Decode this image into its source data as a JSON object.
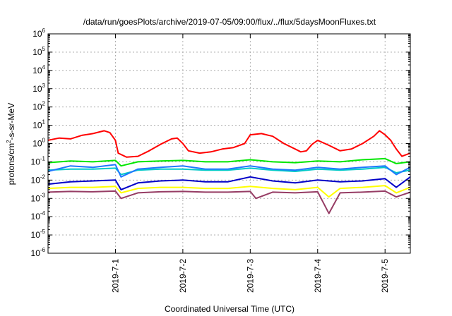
{
  "chart_data": {
    "type": "line",
    "title": "/data/run/goesPlots/archive/2019-07-05/09:00/flux/../flux/5daysMoonFluxes.txt",
    "xlabel": "Coordinated Universal Time (UTC)",
    "ylabel": {
      "prefix": "protons/cm",
      "superscript": "2",
      "suffix": "-s-sr-MeV"
    },
    "yscale": "log",
    "ylim": [
      1e-06,
      1000000.0
    ],
    "y_ticks": [
      {
        "value": 1e-06,
        "base": "10",
        "exp": "-6"
      },
      {
        "value": 1e-05,
        "base": "10",
        "exp": "-5"
      },
      {
        "value": 0.0001,
        "base": "10",
        "exp": "-4"
      },
      {
        "value": 0.001,
        "base": "10",
        "exp": "-3"
      },
      {
        "value": 0.01,
        "base": "10",
        "exp": "-2"
      },
      {
        "value": 0.1,
        "base": "10",
        "exp": "-1"
      },
      {
        "value": 1,
        "base": "10",
        "exp": "0"
      },
      {
        "value": 10,
        "base": "10",
        "exp": "1"
      },
      {
        "value": 100,
        "base": "10",
        "exp": "2"
      },
      {
        "value": 1000,
        "base": "10",
        "exp": "3"
      },
      {
        "value": 10000,
        "base": "10",
        "exp": "4"
      },
      {
        "value": 100000,
        "base": "10",
        "exp": "5"
      },
      {
        "value": 1000000,
        "base": "10",
        "exp": "6"
      }
    ],
    "xlim": [
      "2019-06-30T00:00",
      "2019-07-05T09:00"
    ],
    "x_ticks": [
      {
        "value": "2019-07-01T00:00",
        "label": "2019-7-1"
      },
      {
        "value": "2019-07-02T00:00",
        "label": "2019-7-2"
      },
      {
        "value": "2019-07-03T00:00",
        "label": "2019-7-3"
      },
      {
        "value": "2019-07-04T00:00",
        "label": "2019-7-4"
      },
      {
        "value": "2019-07-05T00:00",
        "label": "2019-7-5"
      }
    ],
    "grid": true,
    "legend": "none",
    "series": [
      {
        "color": "#ff0000",
        "points": [
          [
            "2019-06-30T00:00",
            1.5
          ],
          [
            "2019-06-30T04:00",
            2.0
          ],
          [
            "2019-06-30T08:00",
            1.8
          ],
          [
            "2019-06-30T12:00",
            2.8
          ],
          [
            "2019-06-30T16:00",
            3.5
          ],
          [
            "2019-06-30T20:00",
            5.0
          ],
          [
            "2019-06-30T22:00",
            4.0
          ],
          [
            "2019-07-01T00:00",
            1.5
          ],
          [
            "2019-07-01T01:00",
            0.3
          ],
          [
            "2019-07-01T04:00",
            0.18
          ],
          [
            "2019-07-01T08:00",
            0.2
          ],
          [
            "2019-07-01T12:00",
            0.4
          ],
          [
            "2019-07-01T16:00",
            0.9
          ],
          [
            "2019-07-01T20:00",
            1.8
          ],
          [
            "2019-07-01T22:00",
            2.0
          ],
          [
            "2019-07-02T00:00",
            1.0
          ],
          [
            "2019-07-02T02:00",
            0.4
          ],
          [
            "2019-07-02T06:00",
            0.3
          ],
          [
            "2019-07-02T10:00",
            0.35
          ],
          [
            "2019-07-02T14:00",
            0.5
          ],
          [
            "2019-07-02T18:00",
            0.6
          ],
          [
            "2019-07-02T22:00",
            1.0
          ],
          [
            "2019-07-03T00:00",
            3.0
          ],
          [
            "2019-07-03T04:00",
            3.5
          ],
          [
            "2019-07-03T08:00",
            2.5
          ],
          [
            "2019-07-03T12:00",
            1.0
          ],
          [
            "2019-07-03T16:00",
            0.5
          ],
          [
            "2019-07-03T18:00",
            0.35
          ],
          [
            "2019-07-03T20:00",
            0.4
          ],
          [
            "2019-07-03T22:00",
            0.9
          ],
          [
            "2019-07-04T00:00",
            1.5
          ],
          [
            "2019-07-04T04:00",
            0.8
          ],
          [
            "2019-07-04T08:00",
            0.4
          ],
          [
            "2019-07-04T12:00",
            0.5
          ],
          [
            "2019-07-04T16:00",
            1.0
          ],
          [
            "2019-07-04T20:00",
            2.5
          ],
          [
            "2019-07-04T22:00",
            5.0
          ],
          [
            "2019-07-05T00:00",
            3.0
          ],
          [
            "2019-07-05T02:00",
            1.5
          ],
          [
            "2019-07-05T04:00",
            0.5
          ],
          [
            "2019-07-05T06:00",
            0.2
          ],
          [
            "2019-07-05T09:00",
            0.3
          ]
        ]
      },
      {
        "color": "#00e600",
        "points": [
          [
            "2019-06-30T00:00",
            0.09
          ],
          [
            "2019-06-30T08:00",
            0.11
          ],
          [
            "2019-06-30T16:00",
            0.1
          ],
          [
            "2019-07-01T00:00",
            0.12
          ],
          [
            "2019-07-01T02:00",
            0.06
          ],
          [
            "2019-07-01T08:00",
            0.1
          ],
          [
            "2019-07-01T16:00",
            0.11
          ],
          [
            "2019-07-02T00:00",
            0.12
          ],
          [
            "2019-07-02T08:00",
            0.1
          ],
          [
            "2019-07-02T16:00",
            0.1
          ],
          [
            "2019-07-03T00:00",
            0.13
          ],
          [
            "2019-07-03T08:00",
            0.1
          ],
          [
            "2019-07-03T16:00",
            0.09
          ],
          [
            "2019-07-04T00:00",
            0.11
          ],
          [
            "2019-07-04T08:00",
            0.1
          ],
          [
            "2019-07-04T16:00",
            0.13
          ],
          [
            "2019-07-05T00:00",
            0.15
          ],
          [
            "2019-07-05T04:00",
            0.08
          ],
          [
            "2019-07-05T09:00",
            0.1
          ]
        ]
      },
      {
        "color": "#00c8c8",
        "points": [
          [
            "2019-06-30T00:00",
            0.035
          ],
          [
            "2019-06-30T08:00",
            0.04
          ],
          [
            "2019-06-30T16:00",
            0.04
          ],
          [
            "2019-07-01T00:00",
            0.045
          ],
          [
            "2019-07-01T02:00",
            0.02
          ],
          [
            "2019-07-01T08:00",
            0.035
          ],
          [
            "2019-07-01T16:00",
            0.04
          ],
          [
            "2019-07-02T00:00",
            0.04
          ],
          [
            "2019-07-02T08:00",
            0.035
          ],
          [
            "2019-07-02T16:00",
            0.035
          ],
          [
            "2019-07-03T00:00",
            0.045
          ],
          [
            "2019-07-03T08:00",
            0.035
          ],
          [
            "2019-07-03T16:00",
            0.03
          ],
          [
            "2019-07-04T00:00",
            0.04
          ],
          [
            "2019-07-04T08:00",
            0.035
          ],
          [
            "2019-07-04T16:00",
            0.04
          ],
          [
            "2019-07-05T00:00",
            0.05
          ],
          [
            "2019-07-05T04:00",
            0.025
          ],
          [
            "2019-07-05T09:00",
            0.035
          ]
        ]
      },
      {
        "color": "#1e78ff",
        "points": [
          [
            "2019-06-30T00:00",
            0.03
          ],
          [
            "2019-06-30T08:00",
            0.06
          ],
          [
            "2019-06-30T16:00",
            0.05
          ],
          [
            "2019-07-01T00:00",
            0.07
          ],
          [
            "2019-07-01T02:00",
            0.015
          ],
          [
            "2019-07-01T08:00",
            0.04
          ],
          [
            "2019-07-01T16:00",
            0.05
          ],
          [
            "2019-07-02T00:00",
            0.06
          ],
          [
            "2019-07-02T08:00",
            0.04
          ],
          [
            "2019-07-02T16:00",
            0.04
          ],
          [
            "2019-07-03T00:00",
            0.06
          ],
          [
            "2019-07-03T08:00",
            0.04
          ],
          [
            "2019-07-03T16:00",
            0.035
          ],
          [
            "2019-07-04T00:00",
            0.05
          ],
          [
            "2019-07-04T08:00",
            0.04
          ],
          [
            "2019-07-04T16:00",
            0.05
          ],
          [
            "2019-07-05T00:00",
            0.06
          ],
          [
            "2019-07-05T04:00",
            0.02
          ],
          [
            "2019-07-05T09:00",
            0.05
          ]
        ]
      },
      {
        "color": "#0000c8",
        "points": [
          [
            "2019-06-30T00:00",
            0.006
          ],
          [
            "2019-06-30T08:00",
            0.008
          ],
          [
            "2019-06-30T16:00",
            0.009
          ],
          [
            "2019-07-01T00:00",
            0.01
          ],
          [
            "2019-07-01T02:00",
            0.003
          ],
          [
            "2019-07-01T08:00",
            0.007
          ],
          [
            "2019-07-01T16:00",
            0.009
          ],
          [
            "2019-07-02T00:00",
            0.01
          ],
          [
            "2019-07-02T08:00",
            0.008
          ],
          [
            "2019-07-02T16:00",
            0.008
          ],
          [
            "2019-07-03T00:00",
            0.015
          ],
          [
            "2019-07-03T08:00",
            0.009
          ],
          [
            "2019-07-03T16:00",
            0.007
          ],
          [
            "2019-07-04T00:00",
            0.01
          ],
          [
            "2019-07-04T08:00",
            0.008
          ],
          [
            "2019-07-04T16:00",
            0.009
          ],
          [
            "2019-07-05T00:00",
            0.012
          ],
          [
            "2019-07-05T04:00",
            0.004
          ],
          [
            "2019-07-05T09:00",
            0.015
          ]
        ]
      },
      {
        "color": "#ffff00",
        "points": [
          [
            "2019-06-30T00:00",
            0.0035
          ],
          [
            "2019-06-30T08:00",
            0.004
          ],
          [
            "2019-06-30T16:00",
            0.004
          ],
          [
            "2019-07-01T00:00",
            0.0045
          ],
          [
            "2019-07-01T02:00",
            0.002
          ],
          [
            "2019-07-01T08:00",
            0.0035
          ],
          [
            "2019-07-01T16:00",
            0.004
          ],
          [
            "2019-07-02T00:00",
            0.004
          ],
          [
            "2019-07-02T08:00",
            0.0035
          ],
          [
            "2019-07-02T16:00",
            0.0035
          ],
          [
            "2019-07-03T00:00",
            0.0045
          ],
          [
            "2019-07-03T08:00",
            0.0035
          ],
          [
            "2019-07-03T16:00",
            0.003
          ],
          [
            "2019-07-04T00:00",
            0.004
          ],
          [
            "2019-07-04T04:00",
            0.0012
          ],
          [
            "2019-07-04T08:00",
            0.0035
          ],
          [
            "2019-07-04T16:00",
            0.004
          ],
          [
            "2019-07-05T00:00",
            0.005
          ],
          [
            "2019-07-05T04:00",
            0.002
          ],
          [
            "2019-07-05T09:00",
            0.004
          ]
        ]
      },
      {
        "color": "#963c64",
        "points": [
          [
            "2019-06-30T00:00",
            0.0022
          ],
          [
            "2019-06-30T08:00",
            0.0024
          ],
          [
            "2019-06-30T16:00",
            0.0023
          ],
          [
            "2019-07-01T00:00",
            0.0025
          ],
          [
            "2019-07-01T02:00",
            0.001
          ],
          [
            "2019-07-01T08:00",
            0.002
          ],
          [
            "2019-07-01T16:00",
            0.0023
          ],
          [
            "2019-07-02T00:00",
            0.0024
          ],
          [
            "2019-07-02T08:00",
            0.0022
          ],
          [
            "2019-07-02T16:00",
            0.0022
          ],
          [
            "2019-07-03T00:00",
            0.0024
          ],
          [
            "2019-07-03T02:00",
            0.001
          ],
          [
            "2019-07-03T08:00",
            0.0022
          ],
          [
            "2019-07-03T16:00",
            0.002
          ],
          [
            "2019-07-04T00:00",
            0.0023
          ],
          [
            "2019-07-04T04:00",
            0.00015
          ],
          [
            "2019-07-04T08:00",
            0.002
          ],
          [
            "2019-07-04T16:00",
            0.0022
          ],
          [
            "2019-07-05T00:00",
            0.0025
          ],
          [
            "2019-07-05T04:00",
            0.0012
          ],
          [
            "2019-07-05T09:00",
            0.0022
          ]
        ]
      }
    ]
  }
}
